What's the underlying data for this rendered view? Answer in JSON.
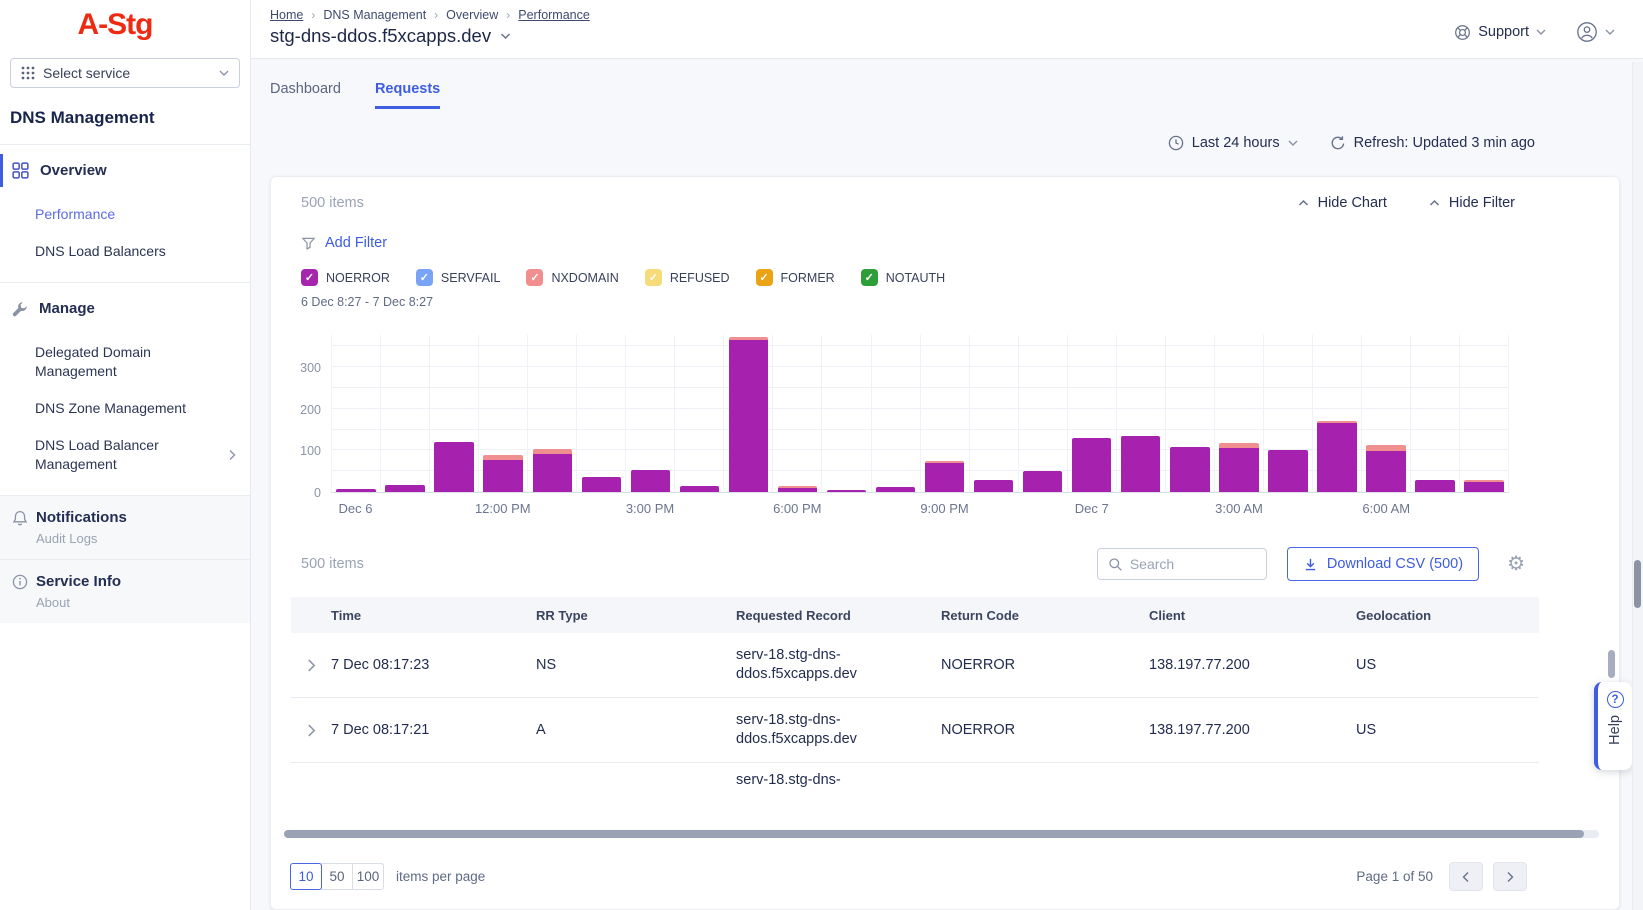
{
  "brand": {
    "logo": "A-Stg",
    "select_service": "Select service"
  },
  "sidebar": {
    "title": "DNS Management",
    "overview": {
      "label": "Overview",
      "items": [
        {
          "label": "Performance",
          "active": true
        },
        {
          "label": "DNS Load Balancers"
        }
      ]
    },
    "manage": {
      "label": "Manage",
      "items": [
        {
          "label": "Delegated Domain Management"
        },
        {
          "label": "DNS Zone Management"
        },
        {
          "label": "DNS Load Balancer Management",
          "expandable": true
        }
      ]
    },
    "notifications": {
      "label": "Notifications",
      "sub": "Audit Logs"
    },
    "service_info": {
      "label": "Service Info",
      "sub": "About"
    }
  },
  "header": {
    "breadcrumb": [
      {
        "label": "Home",
        "underline": true
      },
      {
        "label": "DNS Management"
      },
      {
        "label": "Overview"
      },
      {
        "label": "Performance",
        "underline": true
      }
    ],
    "breadcrumb_separator": "›",
    "title": "stg-dns-ddos.f5xcapps.dev",
    "support": "Support"
  },
  "tabs": [
    {
      "label": "Dashboard"
    },
    {
      "label": "Requests",
      "active": true
    }
  ],
  "controls": {
    "time_range": "Last 24 hours",
    "refresh": "Refresh: Updated 3 min ago"
  },
  "panel": {
    "items_count": "500 items",
    "hide_chart": "Hide Chart",
    "hide_filter": "Hide Filter",
    "add_filter": "Add Filter",
    "filters": [
      {
        "label": "NOERROR",
        "color": "#a526ad",
        "checked": true
      },
      {
        "label": "SERVFAIL",
        "color": "#78a3f7",
        "checked": true
      },
      {
        "label": "NXDOMAIN",
        "color": "#f18f8f",
        "checked": true
      },
      {
        "label": "REFUSED",
        "color": "#f7da79",
        "checked": true
      },
      {
        "label": "FORMER",
        "color": "#eaa313",
        "checked": true
      },
      {
        "label": "NOTAUTH",
        "color": "#2f9e38",
        "checked": true
      }
    ],
    "date_range": "6 Dec 8:27 - 7 Dec 8:27"
  },
  "chart_data": {
    "type": "bar",
    "stacked": true,
    "title": "",
    "xlabel": "",
    "ylabel": "",
    "ylim": [
      0,
      380
    ],
    "yticks": [
      0,
      100,
      200,
      300
    ],
    "grid": true,
    "x_tick_labels": [
      "Dec 6",
      "12:00 PM",
      "3:00 PM",
      "6:00 PM",
      "9:00 PM",
      "Dec 7",
      "3:00 AM",
      "6:00 AM"
    ],
    "x_tick_positions": [
      0,
      3,
      6,
      9,
      12,
      15,
      18,
      21
    ],
    "series": [
      {
        "name": "NOERROR",
        "color": "#a621ae",
        "values": [
          8,
          18,
          120,
          78,
          92,
          35,
          52,
          14,
          365,
          10,
          4,
          12,
          70,
          28,
          50,
          130,
          135,
          108,
          105,
          100,
          165,
          98,
          30,
          25
        ]
      },
      {
        "name": "NXDOMAIN",
        "color": "#ef8f8f",
        "values": [
          0,
          0,
          0,
          10,
          12,
          0,
          0,
          0,
          8,
          5,
          0,
          0,
          5,
          0,
          0,
          0,
          0,
          0,
          12,
          0,
          5,
          15,
          0,
          5
        ]
      }
    ]
  },
  "table": {
    "items_count": "500 items",
    "search_placeholder": "Search",
    "download_label": "Download CSV (500)",
    "columns": [
      "Time",
      "RR Type",
      "Requested Record",
      "Return Code",
      "Client",
      "Geolocation"
    ],
    "rows": [
      {
        "time": "7 Dec 08:17:23",
        "rr_type": "NS",
        "record": "serv-18.stg-dns-ddos.f5xcapps.dev",
        "return_code": "NOERROR",
        "client": "138.197.77.200",
        "geo": "US"
      },
      {
        "time": "7 Dec 08:17:21",
        "rr_type": "A",
        "record": "serv-18.stg-dns-ddos.f5xcapps.dev",
        "return_code": "NOERROR",
        "client": "138.197.77.200",
        "geo": "US"
      }
    ],
    "partial_row_text": "serv-18.stg-dns-"
  },
  "pagination": {
    "options": [
      {
        "label": "10",
        "active": true
      },
      {
        "label": "50"
      },
      {
        "label": "100"
      }
    ],
    "per_page_label": "items per page",
    "page_label": "Page 1 of 50"
  },
  "help": {
    "label": "Help"
  },
  "icons": {
    "gear": "⚙",
    "check": "✓",
    "question": "?"
  }
}
